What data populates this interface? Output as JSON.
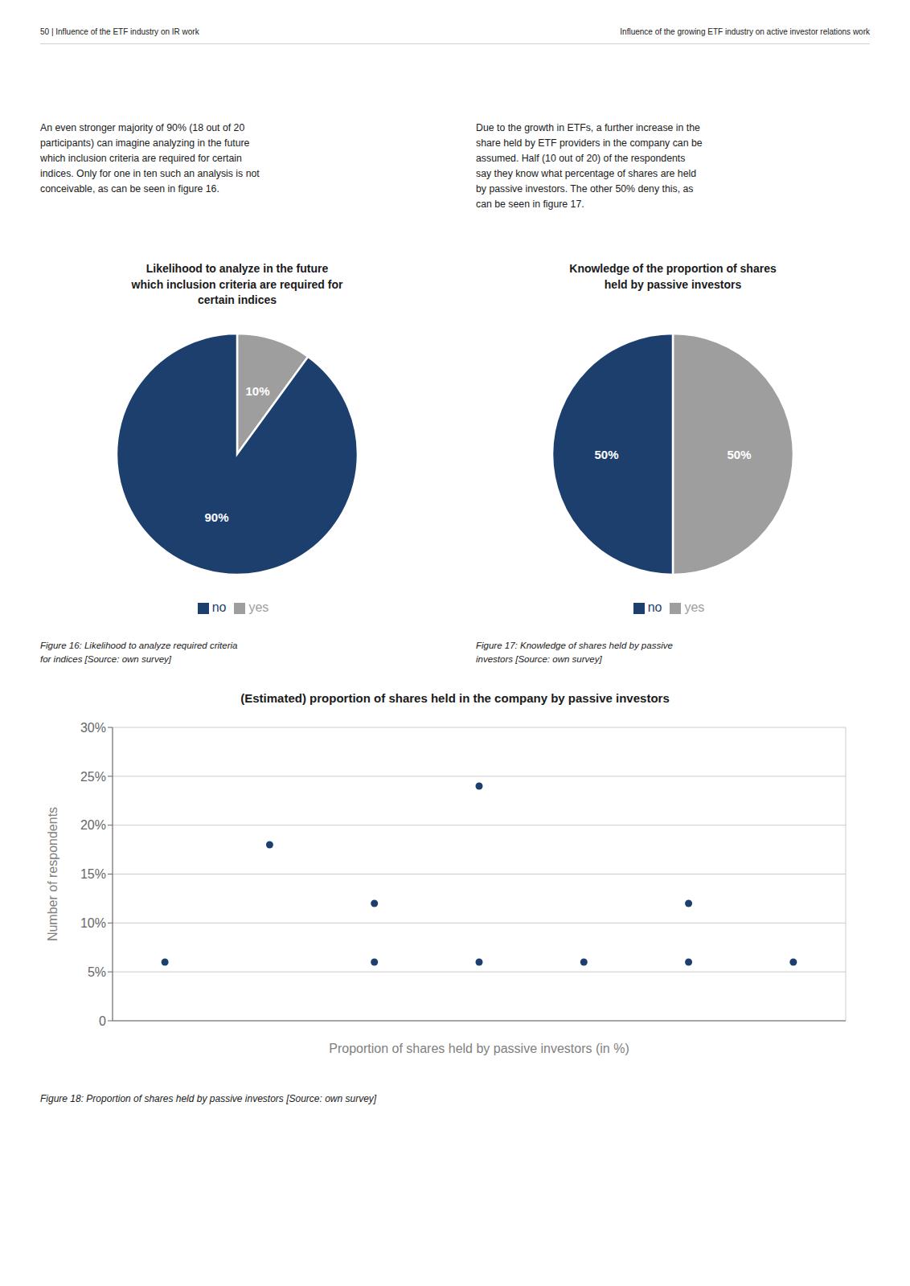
{
  "chart_data": [
    {
      "type": "pie",
      "title": "Likelihood to analyze in the future\nwhich inclusion criteria are required for\ncertain indices",
      "categories": [
        "yes",
        "no"
      ],
      "values": [
        10,
        90
      ],
      "value_labels": [
        "10%",
        "90%"
      ],
      "colors": [
        "#9E9E9E",
        "#1C3F6E"
      ],
      "data_labels": true,
      "legend": "bottom",
      "annotations": [
        "50  |  Influence of the ETF industry on IR work",
        "An even stronger majority of 90% (18 out of 20\nparticipants) can imagine analyzing in the future\nwhich inclusion criteria are required for certain\nindices. Only for one in ten such an analysis is not\nconceivable, as can be seen in figure 16.",
        "Figure 16: Likelihood to analyze required criteria\nfor indices [Source: own survey]"
      ]
    },
    {
      "type": "pie",
      "title": "Knowledge of the proportion of shares\nheld by passive investors",
      "categories": [
        "yes",
        "no"
      ],
      "values": [
        50,
        50
      ],
      "value_labels": [
        "50%",
        "50%"
      ],
      "colors": [
        "#9E9E9E",
        "#1C3F6E"
      ],
      "data_labels": true,
      "legend": "bottom",
      "annotations": [
        "Influence of the growing ETF industry on active investor relations work",
        "Due to the growth in ETFs, a further increase in the\nshare held by ETF providers in the company can be\nassumed. Half (10 out of 20) of the respondents\nsay they know what percentage of shares are held\nby passive investors. The other 50% deny this, as\ncan be seen in figure 17.",
        "Figure 17: Knowledge of shares held by passive\ninvestors [Source: own survey]"
      ]
    },
    {
      "type": "scatter",
      "title": "(Estimated) proportion of shares held in the company by passive investors",
      "x": [
        0,
        1,
        2,
        2,
        3,
        3,
        4,
        5,
        5,
        6
      ],
      "values": [
        6,
        18,
        12,
        6,
        24,
        6,
        6,
        6,
        12,
        6
      ],
      "color": "#1C3F6E",
      "xlabel": "Proportion of shares held by passive investors (in %)",
      "ylabel": "Number of respondents",
      "xlim": [
        -0.5,
        6.5
      ],
      "xticks": [
        0,
        1,
        2,
        3,
        4,
        5,
        6
      ],
      "ylim": [
        0,
        30
      ],
      "yticks": [
        0,
        {
          "value": 5,
          "label": "5%"
        },
        {
          "value": 10,
          "label": "10%"
        },
        {
          "value": 15,
          "label": "15%"
        },
        {
          "value": 20,
          "label": "20%"
        },
        {
          "value": 25,
          "label": "25%"
        },
        {
          "value": 30,
          "label": "30%"
        }
      ],
      "grid": true,
      "tick_labels": "y",
      "annotations": [
        "Figure 18: Proportion of shares held by passive investors [Source: own survey]"
      ]
    }
  ]
}
